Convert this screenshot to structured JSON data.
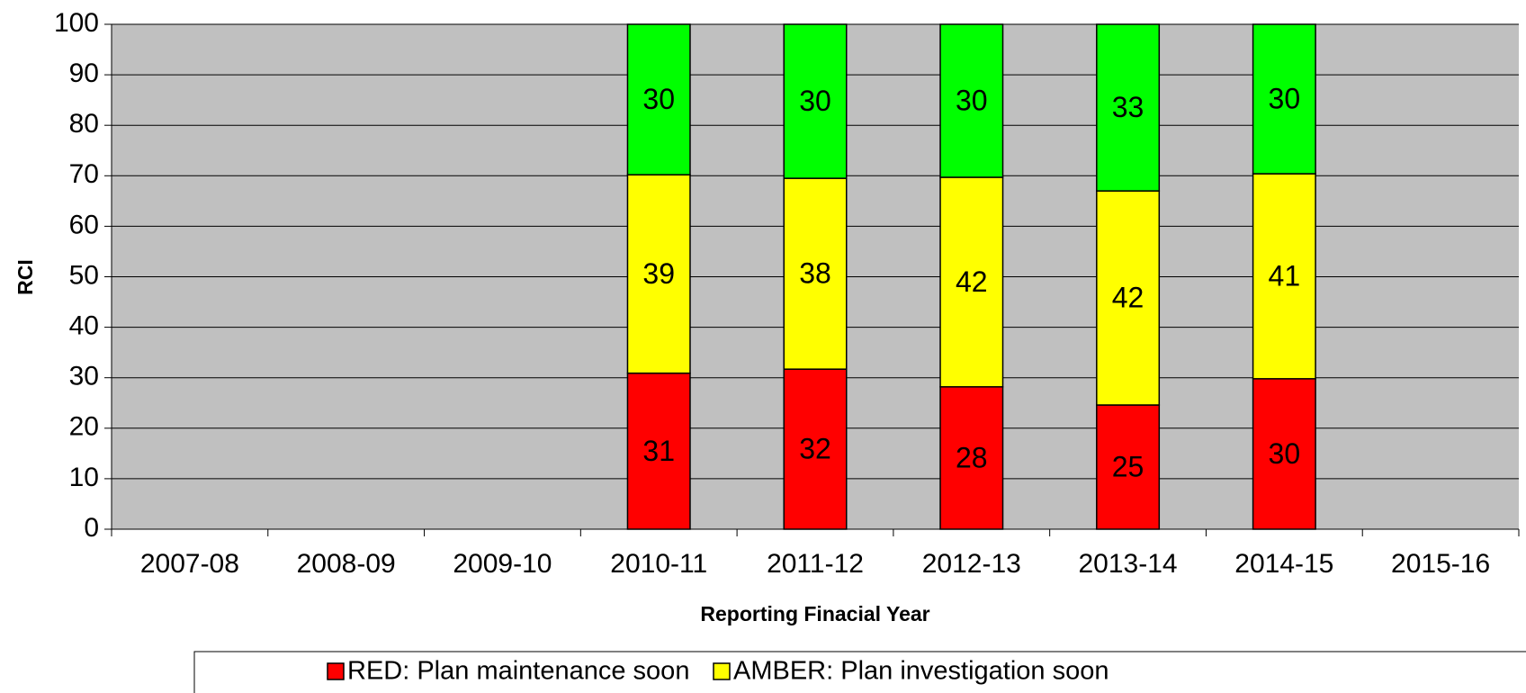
{
  "chart_data": {
    "type": "stacked_bar",
    "y_label": "RCI",
    "x_label": "Reporting  Finacial Year",
    "categories": [
      "2007-08",
      "2008-09",
      "2009-10",
      "2010-11",
      "2011-12",
      "2012-13",
      "2013-14",
      "2014-15",
      "2015-16"
    ],
    "series": [
      {
        "name": "RED: Plan maintenance soon",
        "color": "#ff0000",
        "values": [
          null,
          null,
          null,
          30.9,
          31.7,
          28.2,
          24.6,
          29.8,
          null
        ],
        "value_labels": [
          null,
          null,
          null,
          "31",
          "32",
          "28",
          "25",
          "30",
          null
        ]
      },
      {
        "name": "AMBER: Plan investigation soon",
        "color": "#ffff00",
        "values": [
          null,
          null,
          null,
          39.3,
          37.8,
          41.5,
          42.4,
          40.6,
          null
        ],
        "value_labels": [
          null,
          null,
          null,
          "39",
          "38",
          "42",
          "42",
          "41",
          null
        ]
      },
      {
        "color": "#00ff00",
        "values": [
          null,
          null,
          null,
          29.8,
          30.5,
          30.3,
          33,
          29.6,
          null
        ],
        "value_labels": [
          null,
          null,
          null,
          "30",
          "30",
          "30",
          "33",
          "30",
          null
        ]
      }
    ],
    "ylim": [
      0,
      100
    ],
    "yticks": [
      0,
      10,
      20,
      30,
      40,
      50,
      60,
      70,
      80,
      90,
      100
    ],
    "grid": true,
    "plot_background": "#c0c0c0"
  }
}
